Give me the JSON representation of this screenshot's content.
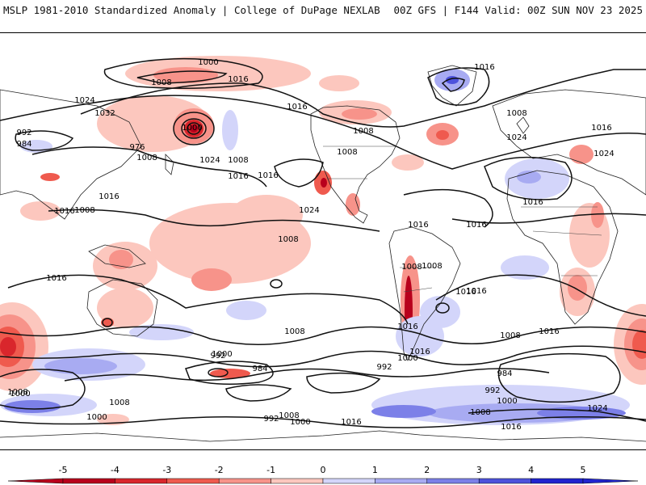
{
  "header": {
    "title_left": "MSLP 1981-2010 Standardized Anomaly | College of DuPage NEXLAB",
    "title_right": "00Z GFS | F144 Valid: 00Z SUN NOV 23 2025"
  },
  "isobar_labels": [
    "1000",
    "1008",
    "1016",
    "1024",
    "1032",
    "992",
    "984",
    "976",
    "1008",
    "1016",
    "1024",
    "1000",
    "1008",
    "1016",
    "1016",
    "1016",
    "1008",
    "1008",
    "1024",
    "1016",
    "1008",
    "1008",
    "1016",
    "1016",
    "1016",
    "1008",
    "1016",
    "1008",
    "1016",
    "1000",
    "992",
    "984",
    "992",
    "1000",
    "1008",
    "1008",
    "1016",
    "1024",
    "1000",
    "984",
    "992",
    "1000",
    "1008",
    "1016",
    "1008",
    "1000",
    "992",
    "1000",
    "1008",
    "1016",
    "1016",
    "1008",
    "1016",
    "1016",
    "1024",
    "1016",
    "1008",
    "1016",
    "1024"
  ],
  "colorbar": {
    "ticks": [
      "-5",
      "-4",
      "-3",
      "-2",
      "-1",
      "0",
      "1",
      "2",
      "3",
      "4",
      "5"
    ],
    "colors": [
      "#b8001c",
      "#d9262c",
      "#ef5a4e",
      "#f7938a",
      "#fcc7be",
      "#ffffff",
      "#d3d5fa",
      "#a8abf2",
      "#7c80e8",
      "#4d52dc",
      "#2024cf"
    ]
  },
  "anomaly_colors": {
    "pos1": "#d3d5fa",
    "pos2": "#a8abf2",
    "pos3": "#7c80e8",
    "pos4": "#4d52dc",
    "neg1": "#fcc7be",
    "neg2": "#f7938a",
    "neg3": "#ef5a4e",
    "neg4": "#d9262c",
    "neg5": "#b8001c"
  }
}
